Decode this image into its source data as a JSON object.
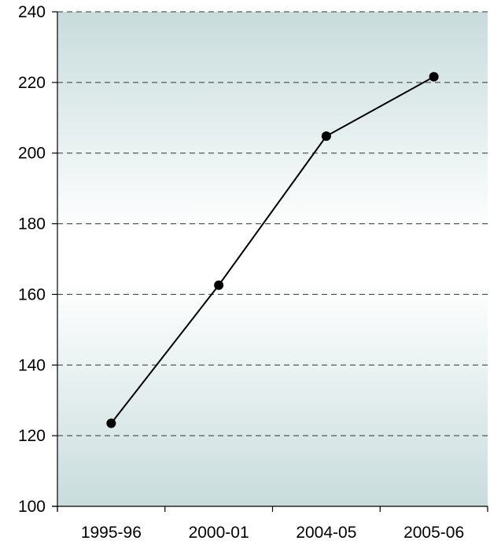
{
  "chart_data": {
    "type": "line",
    "title": "",
    "xlabel": "",
    "ylabel": "",
    "categories": [
      "1995-96",
      "2000-01",
      "2004-05",
      "2005-06"
    ],
    "series": [
      {
        "values": [
          123.5,
          162.6,
          204.8,
          221.6
        ]
      }
    ],
    "ylim": [
      100,
      240
    ],
    "yticks": [
      "100",
      "120",
      "140",
      "160",
      "180",
      "200",
      "220",
      "240"
    ],
    "grid": true,
    "legend": "none",
    "colors": {
      "line": "#000000",
      "marker": "#000000",
      "grid": "#333333",
      "plot_bg_edge": "#c8dcdc",
      "plot_bg_center": "#ffffff"
    }
  }
}
